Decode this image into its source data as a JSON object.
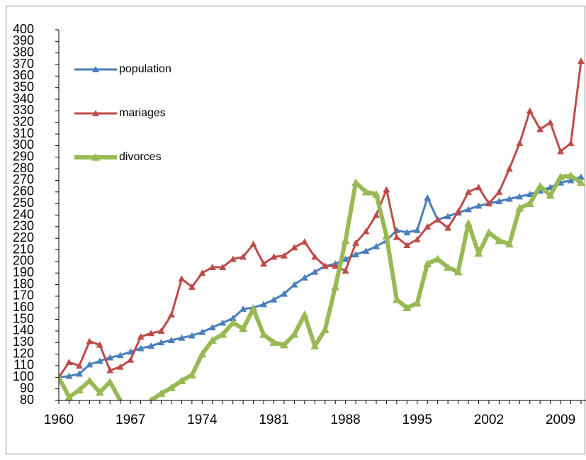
{
  "chart_data": {
    "type": "line",
    "categories": [
      "1960",
      null,
      null,
      null,
      null,
      null,
      null,
      "1967",
      null,
      null,
      null,
      null,
      null,
      null,
      "1974",
      null,
      null,
      null,
      null,
      null,
      null,
      "1981",
      null,
      null,
      null,
      null,
      null,
      null,
      "1988",
      null,
      null,
      null,
      null,
      null,
      null,
      "1995",
      null,
      null,
      null,
      null,
      null,
      null,
      "2002",
      null,
      null,
      null,
      null,
      null,
      null,
      "2009",
      null,
      null
    ],
    "series": [
      {
        "name": "population",
        "color": "#4a7ebb",
        "values": [
          100,
          101,
          103,
          111,
          114,
          117,
          119,
          122,
          125,
          127,
          130,
          132,
          134,
          136,
          139,
          143,
          147,
          151,
          159,
          160,
          163,
          167,
          172,
          180,
          186,
          191,
          196,
          198,
          202,
          206,
          209,
          213,
          218,
          227,
          225,
          227,
          255,
          236,
          239,
          242,
          245,
          248,
          250,
          252,
          254,
          256,
          258,
          261,
          264,
          268,
          270,
          273
        ]
      },
      {
        "name": "mariages",
        "color": "#be4b48",
        "values": [
          100,
          113,
          110,
          131,
          128,
          106,
          109,
          115,
          135,
          138,
          140,
          154,
          185,
          178,
          190,
          195,
          195,
          202,
          204,
          215,
          198,
          204,
          205,
          212,
          217,
          204,
          196,
          196,
          192,
          216,
          226,
          240,
          262,
          221,
          214,
          219,
          230,
          236,
          229,
          243,
          260,
          264,
          250,
          260,
          280,
          302,
          330,
          314,
          320,
          295,
          302,
          373
        ]
      },
      {
        "name": "divorces",
        "color": "#98b954",
        "values": [
          100,
          83,
          89,
          97,
          87,
          96,
          80,
          72,
          70,
          80,
          86,
          91,
          97,
          102,
          120,
          132,
          137,
          147,
          142,
          159,
          137,
          130,
          128,
          137,
          154,
          127,
          141,
          178,
          218,
          268,
          260,
          258,
          222,
          167,
          160,
          164,
          198,
          202,
          195,
          191,
          233,
          207,
          225,
          218,
          215,
          246,
          250,
          265,
          257,
          273,
          274,
          268
        ]
      }
    ],
    "ylim": [
      80,
      400
    ],
    "yticks": [
      80,
      90,
      100,
      110,
      120,
      130,
      140,
      150,
      160,
      170,
      180,
      190,
      200,
      210,
      220,
      230,
      240,
      250,
      260,
      270,
      280,
      290,
      300,
      310,
      320,
      330,
      340,
      350,
      360,
      370,
      380,
      390,
      400
    ]
  }
}
